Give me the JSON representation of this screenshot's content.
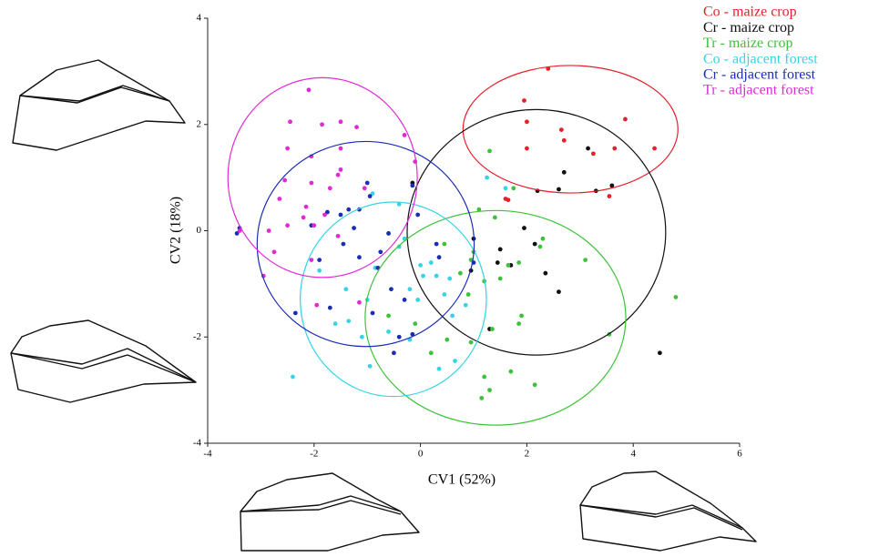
{
  "chart_data": {
    "type": "scatter",
    "x_label": "CV1 (52%)",
    "y_label": "CV2 (18%)",
    "xlim": [
      -4,
      6
    ],
    "xticks": [
      -4,
      -2,
      0,
      2,
      4,
      6
    ],
    "ylim": [
      -4,
      4
    ],
    "yticks": [
      -4,
      -2,
      0,
      2,
      4
    ],
    "legend": "top-right",
    "series": [
      {
        "name": "Co - maize crop",
        "color": "#e4202a",
        "x": [
          2.4,
          1.95,
          2.0,
          2.65,
          2.7,
          2.0,
          3.25,
          3.65,
          3.85,
          4.4,
          3.55,
          1.6,
          1.65
        ],
        "y": [
          3.05,
          2.45,
          2.05,
          1.9,
          1.7,
          1.55,
          1.45,
          1.55,
          2.1,
          1.55,
          0.65,
          0.6,
          0.58
        ],
        "ellipse": {
          "cx": 2.82,
          "cy": 1.91,
          "rx": 2.02,
          "ry": 1.2
        }
      },
      {
        "name": "Cr - maize crop",
        "color": "#111111",
        "x": [
          3.15,
          2.7,
          2.2,
          2.6,
          3.3,
          3.6,
          1.0,
          1.5,
          2.15,
          2.35,
          1.95,
          1.45,
          2.6,
          0.95,
          1.3,
          4.5,
          -0.15,
          1.7
        ],
        "y": [
          1.55,
          1.1,
          0.75,
          0.78,
          0.75,
          0.85,
          -0.15,
          -0.35,
          -0.25,
          -0.8,
          0.05,
          -0.6,
          -1.15,
          -0.75,
          -1.85,
          -2.3,
          0.9,
          -0.65
        ],
        "ellipse": {
          "cx": 2.18,
          "cy": -0.03,
          "rx": 2.43,
          "ry": 2.31
        }
      },
      {
        "name": "Tr - maize crop",
        "color": "#3ec23a",
        "x": [
          1.3,
          1.1,
          1.4,
          1.75,
          2.3,
          2.25,
          3.1,
          4.8,
          3.55,
          1.85,
          1.65,
          1.0,
          0.95,
          0.75,
          1.9,
          1.85,
          1.35,
          0.5,
          0.2,
          -0.1,
          -0.6,
          1.2,
          1.3,
          1.15,
          1.7,
          2.15,
          0.95,
          0.9,
          1.2,
          0.45,
          1.5
        ],
        "y": [
          1.5,
          0.4,
          0.25,
          0.8,
          -0.15,
          -0.3,
          -0.55,
          -1.25,
          -1.95,
          -0.6,
          -0.65,
          -0.4,
          -0.55,
          -0.8,
          -1.6,
          -1.75,
          -1.85,
          -2.05,
          -2.3,
          -1.75,
          -1.6,
          -2.75,
          -3.0,
          -3.15,
          -2.65,
          -2.9,
          -2.1,
          -1.2,
          -0.95,
          -0.25,
          -0.9
        ],
        "ellipse": {
          "cx": 1.41,
          "cy": -1.64,
          "rx": 2.45,
          "ry": 2.02
        }
      },
      {
        "name": "Co - adjacent forest",
        "color": "#36d4e6",
        "x": [
          1.6,
          1.25,
          -0.4,
          -0.9,
          -0.4,
          0.2,
          0.05,
          0.3,
          0.55,
          -0.2,
          -0.05,
          0.45,
          0.85,
          -1.0,
          -1.4,
          -1.35,
          -1.6,
          -1.1,
          -0.6,
          -0.2,
          0.35,
          0.65,
          -0.95,
          -2.4,
          -1.9,
          -0.6,
          -0.85,
          -0.3,
          0.0,
          0.6
        ],
        "y": [
          0.8,
          1.0,
          0.5,
          0.7,
          -0.3,
          -0.6,
          -0.85,
          -0.85,
          -0.9,
          -1.1,
          -1.3,
          -1.2,
          -1.4,
          -1.3,
          -1.1,
          -1.7,
          -1.75,
          -2.0,
          -1.9,
          -2.05,
          -2.6,
          -2.45,
          -2.55,
          -2.75,
          -0.75,
          -0.05,
          -0.7,
          -0.15,
          -0.65,
          -1.6
        ],
        "ellipse": {
          "cx": -0.51,
          "cy": -1.29,
          "rx": 1.75,
          "ry": 1.83
        }
      },
      {
        "name": "Cr - adjacent forest",
        "color": "#1a2db5",
        "x": [
          -3.45,
          -3.4,
          -2.05,
          -1.5,
          -1.75,
          -1.25,
          -1.0,
          -0.95,
          -0.15,
          -0.05,
          -0.6,
          -0.75,
          -1.15,
          -1.45,
          -1.7,
          -0.9,
          -0.55,
          -0.3,
          -0.15,
          -0.4,
          -0.5,
          -2.35,
          -1.9,
          -1.35,
          0.35,
          1.0,
          0.3,
          -1.15,
          -0.8
        ],
        "y": [
          -0.05,
          0.05,
          0.1,
          0.3,
          0.35,
          0.05,
          0.9,
          0.65,
          0.85,
          0.3,
          -0.05,
          -0.4,
          -0.5,
          -0.25,
          -1.45,
          -1.55,
          -1.1,
          -1.3,
          -1.95,
          -2.0,
          -2.3,
          -1.55,
          -0.55,
          0.4,
          -0.5,
          -0.6,
          -0.25,
          0.4,
          -0.7
        ],
        "ellipse": {
          "cx": -1.03,
          "cy": -0.25,
          "rx": 2.04,
          "ry": 1.93
        }
      },
      {
        "name": "Tr - adjacent forest",
        "color": "#e02ad6",
        "x": [
          -2.1,
          -2.45,
          -2.5,
          -1.5,
          -1.85,
          -1.5,
          -1.2,
          -2.05,
          -0.3,
          -1.5,
          -1.55,
          -2.05,
          -1.7,
          -2.55,
          -2.65,
          -2.15,
          -2.2,
          -2.0,
          -2.5,
          -3.4,
          -2.95,
          -2.05,
          -1.55,
          -1.95,
          -1.15,
          -2.75,
          -1.8,
          -2.85,
          -1.05,
          -0.1
        ],
        "y": [
          2.65,
          2.05,
          1.55,
          1.55,
          2.0,
          2.05,
          1.95,
          1.4,
          1.8,
          1.15,
          1.05,
          0.9,
          0.8,
          0.95,
          0.6,
          0.45,
          0.25,
          0.1,
          0.1,
          0.0,
          -0.85,
          -0.55,
          -0.1,
          -1.4,
          -1.35,
          -0.4,
          0.3,
          0.0,
          0.8,
          1.3
        ],
        "ellipse": {
          "cx": -1.84,
          "cy": 1.0,
          "rx": 1.78,
          "ry": 1.88
        }
      }
    ]
  }
}
